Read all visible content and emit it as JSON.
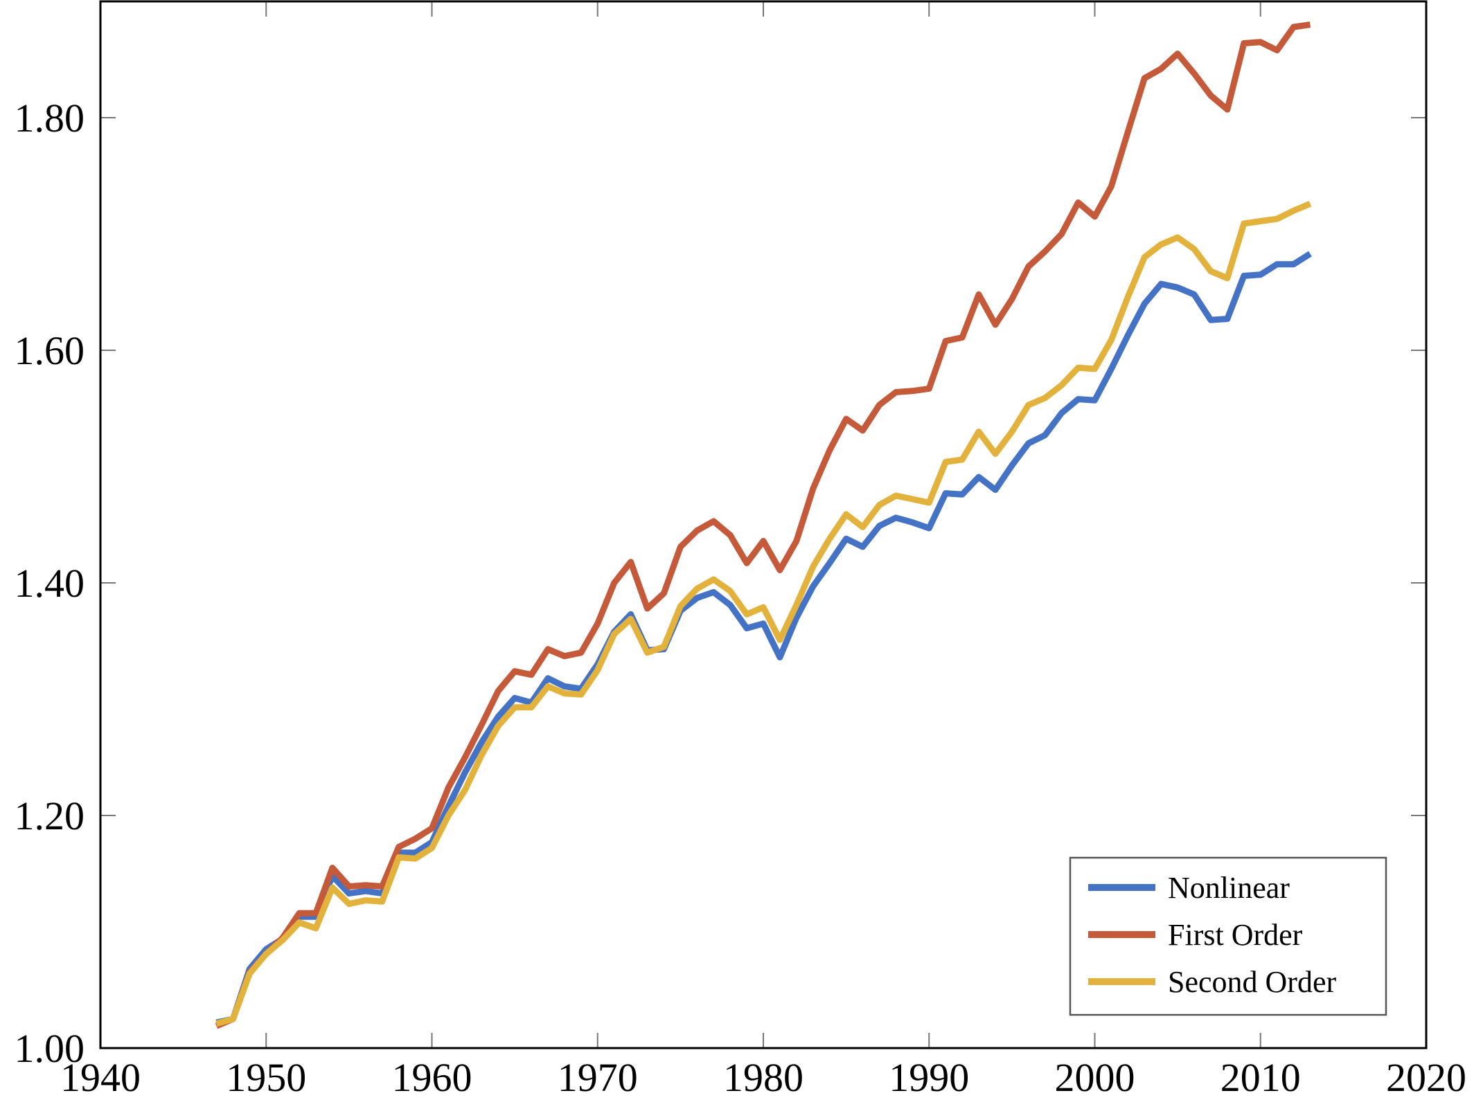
{
  "chart_data": {
    "type": "line",
    "title": "",
    "xlabel": "",
    "ylabel": "",
    "xlim": [
      1940,
      2020
    ],
    "ylim": [
      1.0,
      1.9
    ],
    "xticks": [
      1940,
      1950,
      1960,
      1970,
      1980,
      1990,
      2000,
      2010,
      2020
    ],
    "xtick_labels": [
      "1940",
      "1950",
      "1960",
      "1970",
      "1980",
      "1990",
      "2000",
      "2010",
      "2020"
    ],
    "yticks": [
      1.0,
      1.2,
      1.4,
      1.6,
      1.8
    ],
    "ytick_labels": [
      "1.00",
      "1.20",
      "1.40",
      "1.60",
      "1.80"
    ],
    "grid": false,
    "legend_position": "bottom-right",
    "x": [
      1947,
      1948,
      1949,
      1950,
      1951,
      1952,
      1953,
      1954,
      1955,
      1956,
      1957,
      1958,
      1959,
      1960,
      1961,
      1962,
      1963,
      1964,
      1965,
      1966,
      1967,
      1968,
      1969,
      1970,
      1971,
      1972,
      1973,
      1974,
      1975,
      1976,
      1977,
      1978,
      1979,
      1980,
      1981,
      1982,
      1983,
      1984,
      1985,
      1986,
      1987,
      1988,
      1989,
      1990,
      1991,
      1992,
      1993,
      1994,
      1995,
      1996,
      1997,
      1998,
      1999,
      2000,
      2001,
      2002,
      2003,
      2004,
      2005,
      2006,
      2007,
      2008,
      2009,
      2010,
      2011,
      2012,
      2013
    ],
    "series": [
      {
        "name": "Nonlinear",
        "color": "#4472c4",
        "values": [
          1.022,
          1.025,
          1.068,
          1.085,
          1.094,
          1.113,
          1.113,
          1.148,
          1.133,
          1.135,
          1.133,
          1.168,
          1.168,
          1.177,
          1.208,
          1.237,
          1.263,
          1.285,
          1.301,
          1.297,
          1.318,
          1.311,
          1.309,
          1.33,
          1.358,
          1.373,
          1.342,
          1.343,
          1.376,
          1.387,
          1.392,
          1.381,
          1.361,
          1.365,
          1.336,
          1.37,
          1.397,
          1.417,
          1.438,
          1.431,
          1.449,
          1.456,
          1.452,
          1.447,
          1.477,
          1.476,
          1.491,
          1.48,
          1.501,
          1.52,
          1.527,
          1.546,
          1.558,
          1.557,
          1.584,
          1.613,
          1.64,
          1.657,
          1.654,
          1.648,
          1.626,
          1.627,
          1.664,
          1.665,
          1.674,
          1.674,
          1.683
        ]
      },
      {
        "name": "First Order",
        "color": "#c55a3a",
        "values": [
          1.019,
          1.025,
          1.065,
          1.081,
          1.095,
          1.116,
          1.116,
          1.155,
          1.139,
          1.14,
          1.139,
          1.173,
          1.18,
          1.189,
          1.224,
          1.25,
          1.278,
          1.307,
          1.324,
          1.321,
          1.343,
          1.337,
          1.34,
          1.365,
          1.4,
          1.418,
          1.378,
          1.391,
          1.431,
          1.445,
          1.453,
          1.441,
          1.417,
          1.436,
          1.411,
          1.436,
          1.481,
          1.514,
          1.541,
          1.531,
          1.553,
          1.564,
          1.565,
          1.567,
          1.608,
          1.611,
          1.648,
          1.622,
          1.644,
          1.672,
          1.685,
          1.7,
          1.727,
          1.715,
          1.741,
          1.788,
          1.834,
          1.842,
          1.855,
          1.838,
          1.819,
          1.807,
          1.864,
          1.865,
          1.858,
          1.878,
          1.88
        ]
      },
      {
        "name": "Second Order",
        "color": "#e3b23c",
        "values": [
          1.021,
          1.025,
          1.064,
          1.081,
          1.093,
          1.108,
          1.103,
          1.138,
          1.124,
          1.127,
          1.126,
          1.164,
          1.163,
          1.172,
          1.2,
          1.222,
          1.252,
          1.277,
          1.293,
          1.293,
          1.311,
          1.305,
          1.304,
          1.325,
          1.356,
          1.369,
          1.34,
          1.345,
          1.38,
          1.395,
          1.403,
          1.393,
          1.373,
          1.379,
          1.351,
          1.381,
          1.414,
          1.438,
          1.459,
          1.448,
          1.467,
          1.475,
          1.472,
          1.469,
          1.504,
          1.506,
          1.53,
          1.511,
          1.53,
          1.553,
          1.559,
          1.57,
          1.585,
          1.584,
          1.609,
          1.646,
          1.68,
          1.691,
          1.697,
          1.687,
          1.668,
          1.662,
          1.709,
          1.711,
          1.713,
          1.72,
          1.726
        ]
      }
    ]
  }
}
